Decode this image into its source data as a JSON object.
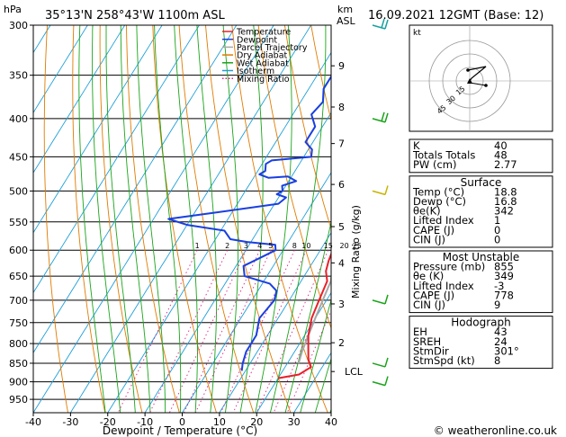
{
  "header": {
    "station": "35°13'N  258°43'W  1100m  ASL",
    "datetime": "16.09.2021  12GMT  (Base: 12)"
  },
  "chart_data": {
    "type": "line",
    "title": "",
    "xlabel": "Dewpoint / Temperature (°C)",
    "ylabel": "hPa",
    "xlim": [
      -40,
      40
    ],
    "x_ticks": [
      "-40",
      "-30",
      "-20",
      "-10",
      "0",
      "10",
      "20",
      "30",
      "40"
    ],
    "pressure_ticks": [
      "300",
      "350",
      "400",
      "450",
      "500",
      "550",
      "600",
      "650",
      "700",
      "750",
      "800",
      "850",
      "900",
      "950"
    ],
    "height_axis_label": "km\nASL",
    "height_ticks": [
      {
        "label": "9",
        "p": 340
      },
      {
        "label": "8",
        "p": 386
      },
      {
        "label": "7",
        "p": 432
      },
      {
        "label": "6",
        "p": 490
      },
      {
        "label": "5",
        "p": 558
      },
      {
        "label": "4",
        "p": 624
      },
      {
        "label": "3",
        "p": 708
      },
      {
        "label": "2",
        "p": 798
      },
      {
        "label": "LCL",
        "p": 872
      }
    ],
    "mixing_ratio_label": "Mixing Ratio (g/kg)",
    "mixing_ratio_labels": [
      "1",
      "2",
      "3",
      "4",
      "5",
      "8",
      "10",
      "15",
      "20",
      "25"
    ],
    "legend": [
      "Temperature",
      "Dewpoint",
      "Parcel Trajectory",
      "Dry Adiabat",
      "Wet Adiabat",
      "Isotherm",
      "Mixing Ratio"
    ],
    "legend_position": "top-left",
    "colors": {
      "temperature": "#e8202a",
      "dewpoint": "#1a3fe0",
      "parcel": "#a8a8a8",
      "dry_adiabat": "#e07b00",
      "wet_adiabat": "#1aa41a",
      "isotherm": "#1f9fd8",
      "mixing_ratio": "#e0208a"
    },
    "series": [
      {
        "name": "Temperature",
        "points": [
          [
            -7,
            300
          ],
          [
            -5,
            330
          ],
          [
            -3,
            360
          ],
          [
            -1,
            380
          ],
          [
            2,
            400
          ],
          [
            4,
            420
          ],
          [
            6,
            450
          ],
          [
            7,
            470
          ],
          [
            7,
            490
          ],
          [
            8,
            510
          ],
          [
            9,
            540
          ],
          [
            11,
            560
          ],
          [
            13,
            590
          ],
          [
            14,
            620
          ],
          [
            15,
            640
          ],
          [
            17,
            660
          ],
          [
            18,
            700
          ],
          [
            19,
            740
          ],
          [
            21,
            780
          ],
          [
            23,
            810
          ],
          [
            25,
            840
          ],
          [
            27,
            860
          ],
          [
            25,
            880
          ],
          [
            20,
            890
          ]
        ]
      },
      {
        "name": "Dewpoint",
        "points": [
          [
            -14,
            300
          ],
          [
            -15,
            310
          ],
          [
            -18,
            330
          ],
          [
            -16,
            350
          ],
          [
            -16,
            365
          ],
          [
            -14,
            380
          ],
          [
            -15,
            395
          ],
          [
            -12,
            410
          ],
          [
            -12,
            430
          ],
          [
            -9,
            440
          ],
          [
            -8,
            450
          ],
          [
            -18,
            455
          ],
          [
            -19,
            460
          ],
          [
            -18,
            470
          ],
          [
            -19,
            475
          ],
          [
            -16,
            480
          ],
          [
            -11,
            478
          ],
          [
            -8,
            485
          ],
          [
            -11,
            492
          ],
          [
            -10,
            500
          ],
          [
            -11,
            505
          ],
          [
            -8,
            510
          ],
          [
            -9,
            520
          ],
          [
            -25,
            535
          ],
          [
            -36,
            545
          ],
          [
            -30,
            555
          ],
          [
            -19,
            565
          ],
          [
            -16,
            580
          ],
          [
            -11,
            585
          ],
          [
            -3,
            590
          ],
          [
            -2,
            600
          ],
          [
            -4,
            610
          ],
          [
            -8,
            630
          ],
          [
            -6,
            650
          ],
          [
            2,
            665
          ],
          [
            5,
            680
          ],
          [
            6,
            700
          ],
          [
            5,
            740
          ],
          [
            7,
            780
          ],
          [
            7,
            820
          ],
          [
            8,
            850
          ],
          [
            9,
            870
          ]
        ]
      },
      {
        "name": "Parcel Trajectory",
        "points": [
          [
            -11,
            300
          ],
          [
            -8,
            330
          ],
          [
            -5,
            360
          ],
          [
            -2,
            390
          ],
          [
            0,
            420
          ],
          [
            3,
            450
          ],
          [
            6,
            480
          ],
          [
            8,
            510
          ],
          [
            10,
            540
          ],
          [
            12,
            570
          ],
          [
            14,
            600
          ],
          [
            16,
            630
          ],
          [
            18,
            660
          ],
          [
            19,
            700
          ],
          [
            20,
            740
          ],
          [
            21,
            780
          ],
          [
            22,
            820
          ],
          [
            23,
            850
          ]
        ]
      }
    ],
    "wind_barbs": [
      {
        "p": 300,
        "speed_kt": 25,
        "dir": 250
      },
      {
        "p": 400,
        "speed_kt": 20,
        "dir": 240
      },
      {
        "p": 500,
        "speed_kt": 10,
        "dir": 260
      },
      {
        "p": 700,
        "speed_kt": 10,
        "dir": 250
      },
      {
        "p": 850,
        "speed_kt": 10,
        "dir": 240
      },
      {
        "p": 900,
        "speed_kt": 5,
        "dir": 200
      }
    ]
  },
  "hodograph": {
    "title": "kt",
    "ring_labels": [
      "15",
      "30",
      "45"
    ]
  },
  "indices": {
    "block1": [
      {
        "label": "K",
        "value": "40"
      },
      {
        "label": "Totals Totals",
        "value": "48"
      },
      {
        "label": "PW (cm)",
        "value": "2.77"
      }
    ],
    "surface": {
      "title": "Surface",
      "rows": [
        {
          "label": "Temp (°C)",
          "value": "18.8"
        },
        {
          "label": "Dewp (°C)",
          "value": "16.8"
        },
        {
          "label": "θe(K)",
          "value": "342"
        },
        {
          "label": "Lifted Index",
          "value": "1"
        },
        {
          "label": "CAPE (J)",
          "value": "0"
        },
        {
          "label": "CIN (J)",
          "value": "0"
        }
      ]
    },
    "most_unstable": {
      "title": "Most Unstable",
      "rows": [
        {
          "label": "Pressure (mb)",
          "value": "855"
        },
        {
          "label": "θe (K)",
          "value": "349"
        },
        {
          "label": "Lifted Index",
          "value": "-3"
        },
        {
          "label": "CAPE (J)",
          "value": "778"
        },
        {
          "label": "CIN (J)",
          "value": "9"
        }
      ]
    },
    "hodograph_block": {
      "title": "Hodograph",
      "rows": [
        {
          "label": "EH",
          "value": "43"
        },
        {
          "label": "SREH",
          "value": "24"
        },
        {
          "label": "StmDir",
          "value": "301°"
        },
        {
          "label": "StmSpd (kt)",
          "value": "8"
        }
      ]
    }
  },
  "footer": {
    "copyright": "© weatheronline.co.uk"
  }
}
